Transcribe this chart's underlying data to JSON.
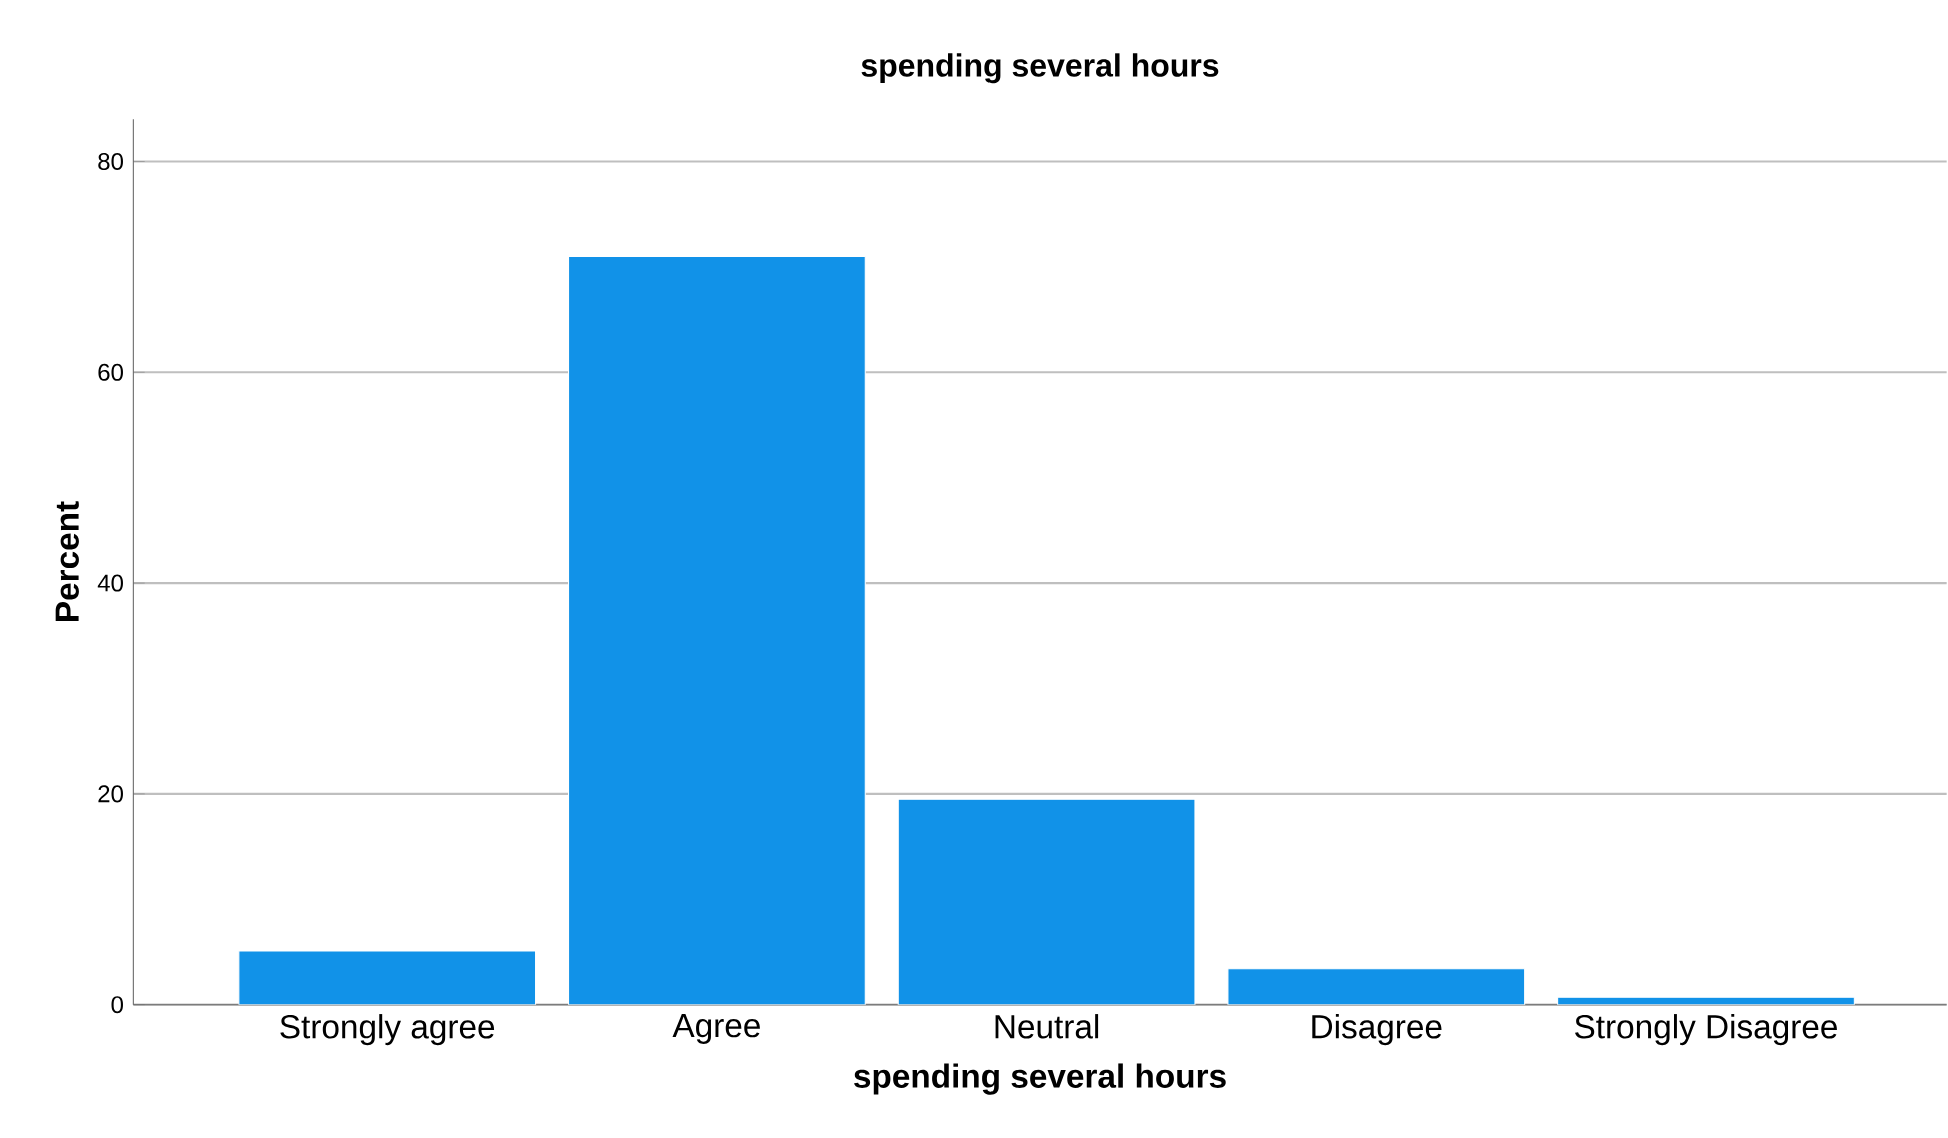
{
  "chart_data": {
    "type": "bar",
    "title": "spending several hours",
    "xlabel": "spending several hours",
    "ylabel": "Percent",
    "categories": [
      "Strongly agree",
      "Agree",
      "Neutral",
      "Disagree",
      "Strongly Disagree"
    ],
    "values": [
      5.1,
      71.0,
      19.5,
      3.4,
      0.7
    ],
    "color": "#1192e8",
    "ylim": [
      0,
      84
    ],
    "yticks": [
      0,
      20,
      40,
      60,
      80
    ],
    "grid": "y"
  }
}
